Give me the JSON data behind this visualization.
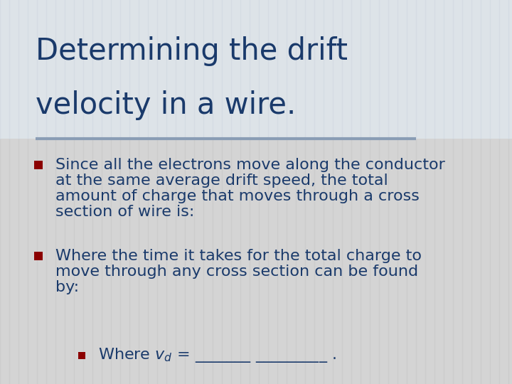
{
  "title_line1": "Determining the drift",
  "title_line2": "velocity in a wire.",
  "title_color": "#1a3a6b",
  "background_color": "#d4d4d4",
  "title_bg_color": "#dde3e8",
  "stripe_color": "#c5c5c5",
  "separator_color": "#8a9db5",
  "bullet_color": "#8b0000",
  "text_color": "#1a3a6b",
  "bullet1_lines": [
    "Since all the electrons move along the conductor",
    "at the same average drift speed, the total",
    "amount of charge that moves through a cross",
    "section of wire is:"
  ],
  "bullet2_lines": [
    "Where the time it takes for the total charge to",
    "move through any cross section can be found",
    "by:"
  ],
  "title_fontsize": 30,
  "body_fontsize": 16,
  "sub_fontsize": 16
}
